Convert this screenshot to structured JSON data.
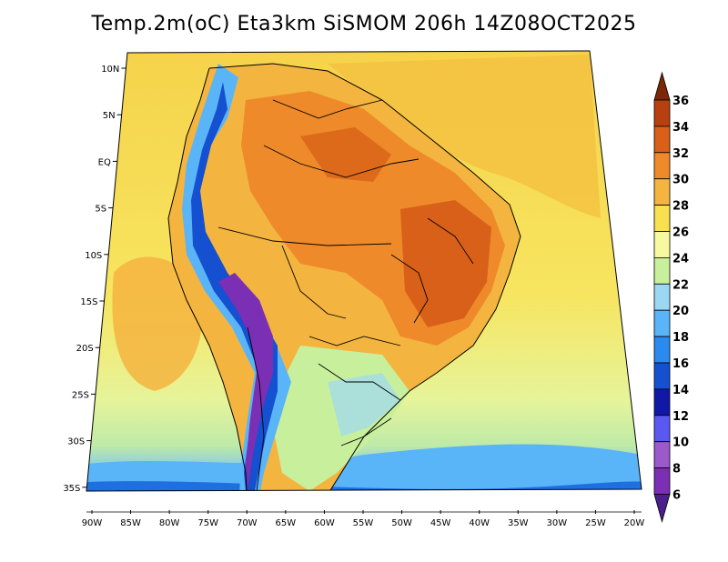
{
  "title": "Temp.2m(oC) Eta3km SiSMOM 206h 14Z08OCT2025",
  "lat_labels": [
    "10N",
    "5N",
    "EQ",
    "5S",
    "10S",
    "15S",
    "20S",
    "25S",
    "30S",
    "35S"
  ],
  "lon_labels": [
    "90W",
    "85W",
    "80W",
    "75W",
    "70W",
    "65W",
    "60W",
    "55W",
    "50W",
    "45W",
    "40W",
    "35W",
    "30W",
    "25W",
    "20W"
  ],
  "colorbar": {
    "labels": [
      "6",
      "8",
      "10",
      "12",
      "14",
      "16",
      "18",
      "20",
      "22",
      "24",
      "26",
      "28",
      "30",
      "32",
      "34",
      "36"
    ],
    "colors": [
      "#4b1f8c",
      "#7b2fb5",
      "#9b59c9",
      "#5a58f0",
      "#1018a8",
      "#1450d0",
      "#2a8af0",
      "#5ab4f8",
      "#9cd8f4",
      "#c8f09c",
      "#f8f8a0",
      "#f8e050",
      "#f4b440",
      "#ee8a2a",
      "#d86018",
      "#b84010",
      "#7a2808"
    ]
  }
}
